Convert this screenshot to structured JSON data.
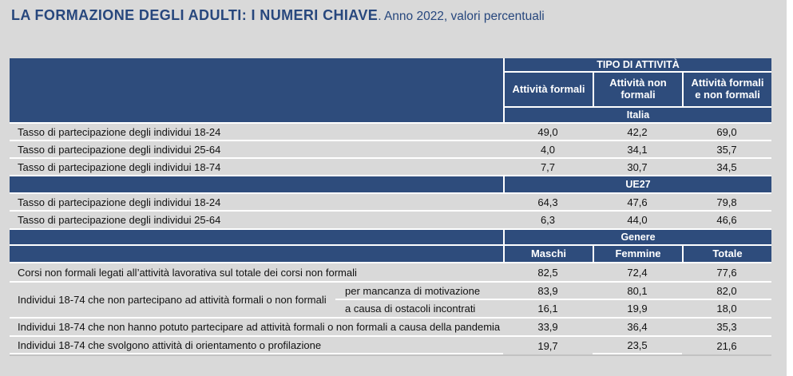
{
  "title": {
    "main": "LA FORMAZIONE DEGLI ADULTI: I NUMERI CHIAVE",
    "subtitle": ". Anno 2022, valori percentuali"
  },
  "colors": {
    "header_blue": "#2e4c7c",
    "background_gray": "#d9d9d9",
    "separator_white": "#ffffff",
    "title_text": "#27477d"
  },
  "table": {
    "group_header": "TIPO DI ATTIVITÀ",
    "activity_cols": [
      "Attività formali",
      "Attività non formali",
      "Attività formali e non formali"
    ],
    "italia": {
      "label": "Italia",
      "rows": [
        {
          "label": "Tasso di partecipazione degli individui 18-24",
          "c1": "49,0",
          "c2": "42,2",
          "c3": "69,0"
        },
        {
          "label": "Tasso di partecipazione degli individui 25-64",
          "c1": "4,0",
          "c2": "34,1",
          "c3": "35,7"
        },
        {
          "label": "Tasso di partecipazione degli individui 18-74",
          "c1": "7,7",
          "c2": "30,7",
          "c3": "34,5"
        }
      ]
    },
    "ue27": {
      "label": "UE27",
      "rows": [
        {
          "label": "Tasso di partecipazione degli individui 18-24",
          "c1": "64,3",
          "c2": "47,6",
          "c3": "79,8"
        },
        {
          "label": "Tasso di partecipazione degli individui 25-64",
          "c1": "6,3",
          "c2": "44,0",
          "c3": "46,6"
        }
      ]
    },
    "genere": {
      "label": "Genere",
      "cols": [
        "Maschi",
        "Femmine",
        "Totale"
      ],
      "rows": [
        {
          "label": "Corsi non formali legati all’attività lavorativa sul totale dei corsi non formali",
          "c1": "82,5",
          "c2": "72,4",
          "c3": "77,6"
        },
        {
          "label": "Individui 18-74 che non partecipano ad attività formali o non formali",
          "sub": [
            {
              "label": "per mancanza di motivazione",
              "c1": "83,9",
              "c2": "80,1",
              "c3": "82,0"
            },
            {
              "label": "a causa di ostacoli incontrati",
              "c1": "16,1",
              "c2": "19,9",
              "c3": "18,0"
            }
          ]
        },
        {
          "label": "Individui 18-74 che non hanno potuto partecipare ad attività formali o non formali a causa della pandemia",
          "c1": "33,9",
          "c2": "36,4",
          "c3": "35,3"
        },
        {
          "label": "Individui 18-74 che svolgono attività di orientamento o profilazione",
          "c1": "19,7",
          "c2": "23,5",
          "c3": "21,6"
        }
      ]
    }
  },
  "chart_data": {
    "type": "table",
    "title": "LA FORMAZIONE DEGLI ADULTI: I NUMERI CHIAVE",
    "subtitle": "Anno 2022, valori percentuali",
    "column_group": "TIPO DI ATTIVITÀ",
    "sections": [
      {
        "name": "Italia",
        "columns": [
          "Attività formali",
          "Attività non formali",
          "Attività formali e non formali"
        ],
        "rows": [
          {
            "label": "Tasso di partecipazione degli individui 18-24",
            "values": [
              49.0,
              42.2,
              69.0
            ]
          },
          {
            "label": "Tasso di partecipazione degli individui 25-64",
            "values": [
              4.0,
              34.1,
              35.7
            ]
          },
          {
            "label": "Tasso di partecipazione degli individui 18-74",
            "values": [
              7.7,
              30.7,
              34.5
            ]
          }
        ]
      },
      {
        "name": "UE27",
        "columns": [
          "Attività formali",
          "Attività non formali",
          "Attività formali e non formali"
        ],
        "rows": [
          {
            "label": "Tasso di partecipazione degli individui 18-24",
            "values": [
              64.3,
              47.6,
              79.8
            ]
          },
          {
            "label": "Tasso di partecipazione degli individui 25-64",
            "values": [
              6.3,
              44.0,
              46.6
            ]
          }
        ]
      },
      {
        "name": "Genere",
        "columns": [
          "Maschi",
          "Femmine",
          "Totale"
        ],
        "rows": [
          {
            "label": "Corsi non formali legati all’attività lavorativa sul totale dei corsi non formali",
            "values": [
              82.5,
              72.4,
              77.6
            ]
          },
          {
            "label": "Individui 18-74 che non partecipano ad attività formali o non formali — per mancanza di motivazione",
            "values": [
              83.9,
              80.1,
              82.0
            ]
          },
          {
            "label": "Individui 18-74 che non partecipano ad attività formali o non formali — a causa di ostacoli incontrati",
            "values": [
              16.1,
              19.9,
              18.0
            ]
          },
          {
            "label": "Individui 18-74 che non hanno potuto partecipare ad attività formali o non formali a causa della pandemia",
            "values": [
              33.9,
              36.4,
              35.3
            ]
          },
          {
            "label": "Individui 18-74 che svolgono attività di orientamento o profilazione",
            "values": [
              19.7,
              23.5,
              21.6
            ]
          }
        ]
      }
    ]
  }
}
